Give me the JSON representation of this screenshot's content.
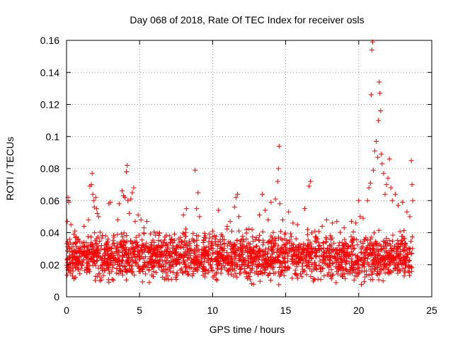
{
  "chart_data": {
    "type": "scatter",
    "title": "Day 068 of 2018, Rate Of TEC Index for receiver osls",
    "xlabel": "GPS time / hours",
    "ylabel": "ROTI / TECUs",
    "xlim": [
      0,
      25
    ],
    "ylim": [
      0,
      0.16
    ],
    "x_ticks": [
      0,
      5,
      10,
      15,
      20,
      25
    ],
    "y_ticks": [
      0,
      0.02,
      0.04,
      0.06,
      0.08,
      0.1,
      0.12,
      0.14,
      0.16
    ],
    "x_tick_labels": [
      "0",
      "5",
      "10",
      "15",
      "20",
      "25"
    ],
    "y_tick_labels": [
      "0",
      "0.02",
      "0.04",
      "0.06",
      "0.08",
      "0.1",
      "0.12",
      "0.14",
      "0.16"
    ],
    "grid": true,
    "marker": "+",
    "color": "#ff0000",
    "series": [
      {
        "name": "ROTI",
        "points": [
          [
            0.05,
            0.047
          ],
          [
            0.1,
            0.062
          ],
          [
            0.15,
            0.059
          ],
          [
            0.3,
            0.045
          ],
          [
            0.5,
            0.039
          ],
          [
            0.8,
            0.036
          ],
          [
            1.2,
            0.044
          ],
          [
            1.5,
            0.048
          ],
          [
            1.6,
            0.069
          ],
          [
            1.7,
            0.07
          ],
          [
            1.75,
            0.077
          ],
          [
            1.8,
            0.064
          ],
          [
            1.85,
            0.06
          ],
          [
            1.9,
            0.056
          ],
          [
            2.0,
            0.062
          ],
          [
            2.05,
            0.055
          ],
          [
            2.1,
            0.052
          ],
          [
            2.2,
            0.05
          ],
          [
            2.9,
            0.058
          ],
          [
            3.0,
            0.059
          ],
          [
            3.5,
            0.048
          ],
          [
            3.6,
            0.058
          ],
          [
            3.8,
            0.066
          ],
          [
            3.9,
            0.063
          ],
          [
            4.0,
            0.062
          ],
          [
            4.1,
            0.078
          ],
          [
            4.15,
            0.082
          ],
          [
            4.2,
            0.06
          ],
          [
            4.3,
            0.052
          ],
          [
            4.4,
            0.061
          ],
          [
            4.5,
            0.065
          ],
          [
            4.6,
            0.068
          ],
          [
            4.7,
            0.047
          ],
          [
            4.9,
            0.051
          ],
          [
            5.1,
            0.048
          ],
          [
            5.3,
            0.043
          ],
          [
            5.5,
            0.047
          ],
          [
            6.0,
            0.034
          ],
          [
            6.5,
            0.032
          ],
          [
            7.2,
            0.036
          ],
          [
            7.8,
            0.037
          ],
          [
            8.0,
            0.051
          ],
          [
            8.2,
            0.055
          ],
          [
            8.8,
            0.079
          ],
          [
            8.9,
            0.055
          ],
          [
            9.0,
            0.065
          ],
          [
            9.1,
            0.05
          ],
          [
            9.5,
            0.038
          ],
          [
            10.0,
            0.041
          ],
          [
            10.4,
            0.054
          ],
          [
            10.8,
            0.033
          ],
          [
            11.0,
            0.044
          ],
          [
            11.2,
            0.047
          ],
          [
            11.5,
            0.056
          ],
          [
            11.6,
            0.062
          ],
          [
            11.7,
            0.064
          ],
          [
            11.8,
            0.05
          ],
          [
            12.3,
            0.036
          ],
          [
            12.7,
            0.042
          ],
          [
            13.2,
            0.051
          ],
          [
            13.4,
            0.064
          ],
          [
            13.6,
            0.054
          ],
          [
            13.8,
            0.048
          ],
          [
            14.0,
            0.059
          ],
          [
            14.3,
            0.061
          ],
          [
            14.45,
            0.072
          ],
          [
            14.5,
            0.08
          ],
          [
            14.55,
            0.094
          ],
          [
            14.6,
            0.058
          ],
          [
            14.8,
            0.048
          ],
          [
            15.2,
            0.053
          ],
          [
            15.5,
            0.046
          ],
          [
            15.8,
            0.045
          ],
          [
            16.3,
            0.055
          ],
          [
            16.5,
            0.042
          ],
          [
            16.6,
            0.069
          ],
          [
            16.7,
            0.072
          ],
          [
            17.0,
            0.041
          ],
          [
            17.5,
            0.044
          ],
          [
            17.8,
            0.048
          ],
          [
            18.2,
            0.046
          ],
          [
            18.5,
            0.047
          ],
          [
            19.0,
            0.043
          ],
          [
            19.5,
            0.047
          ],
          [
            19.8,
            0.046
          ],
          [
            20.0,
            0.06
          ],
          [
            20.1,
            0.05
          ],
          [
            20.3,
            0.049
          ],
          [
            20.6,
            0.06
          ],
          [
            20.7,
            0.068
          ],
          [
            20.8,
            0.071
          ],
          [
            20.85,
            0.126
          ],
          [
            20.9,
            0.154
          ],
          [
            20.95,
            0.159
          ],
          [
            21.0,
            0.079
          ],
          [
            21.1,
            0.091
          ],
          [
            21.2,
            0.097
          ],
          [
            21.3,
            0.087
          ],
          [
            21.35,
            0.11
          ],
          [
            21.4,
            0.134
          ],
          [
            21.45,
            0.127
          ],
          [
            21.5,
            0.116
          ],
          [
            21.55,
            0.089
          ],
          [
            21.6,
            0.083
          ],
          [
            21.7,
            0.077
          ],
          [
            21.8,
            0.064
          ],
          [
            21.9,
            0.07
          ],
          [
            22.0,
            0.074
          ],
          [
            22.1,
            0.086
          ],
          [
            22.2,
            0.068
          ],
          [
            22.3,
            0.06
          ],
          [
            22.5,
            0.064
          ],
          [
            22.7,
            0.057
          ],
          [
            23.0,
            0.059
          ],
          [
            23.3,
            0.053
          ],
          [
            23.5,
            0.05
          ],
          [
            23.6,
            0.085
          ],
          [
            23.65,
            0.07
          ],
          [
            23.7,
            0.06
          ]
        ],
        "dense_band": {
          "x_range": [
            0,
            23.7
          ],
          "y_lower": 0.005,
          "y_upper": 0.045,
          "approx_points": 2200
        }
      }
    ]
  }
}
